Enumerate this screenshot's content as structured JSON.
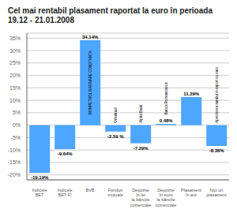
{
  "chart_data": {
    "type": "bar",
    "title": "Cel mai rentabil plasament raportat la euro în perioada 19.12 - 21.01.2008",
    "categories": [
      "Indicele\nBET",
      "Indicele\nBET FI",
      "BVB",
      "Fonduri\nmutuale",
      "Depozite\nîn lei\nla băncile\ncomerciale",
      "Depozite\nîn euro\nla băncile\ncomerciale",
      "Plasament\nîn aur",
      "Nici un\nplasament"
    ],
    "values": [
      -19.19,
      -9.64,
      34.14,
      -2.59,
      -7.29,
      0.48,
      11.29,
      -8.36
    ],
    "value_labels": [
      "-19.19%",
      "-9.64%",
      "34.14%",
      "-2.59 %",
      "-7.29%",
      "0.48%",
      "11.29%",
      "-8.36%"
    ],
    "data_labels": true,
    "color": "#4DA6FF",
    "annotations": [
      {
        "text": "ROMPETROL RAFINARE CONSTANŢA",
        "category": "BVB"
      },
      {
        "text": "Omnitrust",
        "category": "Fonduri\nmutuale"
      },
      {
        "text": "Alpha Bank",
        "category": "Depozite\nîn lei\nla băncile\ncomerciale"
      },
      {
        "text": "Banca Romaneasca",
        "category": "Depozite\nîn euro\nla băncile\ncomerciale"
      },
      {
        "text": "Aprecierea aurului în raport cu euro",
        "category": "Nici un\nplasament"
      }
    ],
    "ylim": [
      -22,
      37
    ],
    "yticks": [
      {
        "value": -20,
        "label": "-20%"
      },
      {
        "value": -15,
        "label": "-15%"
      },
      {
        "value": -10,
        "label": "-10%"
      },
      {
        "value": -5,
        "label": "-5%"
      },
      {
        "value": 0,
        "label": "0%"
      },
      {
        "value": 5,
        "label": "5%"
      },
      {
        "value": 10,
        "label": "10%"
      },
      {
        "value": 15,
        "label": "15%"
      },
      {
        "value": 20,
        "label": "20%"
      },
      {
        "value": 25,
        "label": "25%"
      },
      {
        "value": 30,
        "label": "30%"
      },
      {
        "value": 35,
        "label": "35%"
      }
    ],
    "grid": true
  }
}
